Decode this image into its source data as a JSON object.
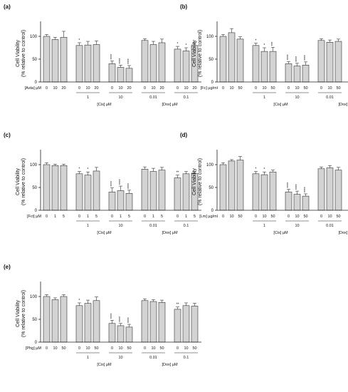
{
  "colors": {
    "bar_fill": "#d3d3d3",
    "bar_stroke": "#333333",
    "axis": "#222222"
  },
  "chart_data": [
    {
      "type": "bar",
      "panel_label": "(a)",
      "ylabel": [
        "Cell Viability",
        "(% relative to control)"
      ],
      "ylim": [
        0,
        125
      ],
      "yticks": [
        "0",
        "50",
        "100"
      ],
      "compound_label": "[Asta] µM",
      "groups": [
        {
          "doses": [
            "0",
            "10",
            "20"
          ],
          "values": [
            100,
            93,
            98
          ],
          "errors": [
            4,
            5,
            13
          ],
          "stars": [
            "",
            "",
            ""
          ],
          "treatment": ""
        },
        {
          "doses": [
            "0",
            "10",
            "20"
          ],
          "values": [
            80,
            81,
            82
          ],
          "errors": [
            6,
            8,
            8
          ],
          "stars": [
            "*",
            "",
            ""
          ],
          "treatment": "1"
        },
        {
          "doses": [
            "0",
            "10",
            "20"
          ],
          "values": [
            40,
            32,
            30
          ],
          "errors": [
            6,
            5,
            6
          ],
          "stars": [
            "****",
            "****",
            "****"
          ],
          "treatment": "10"
        },
        {
          "doses": [
            "0",
            "10",
            "20"
          ],
          "values": [
            91,
            82,
            86
          ],
          "errors": [
            4,
            7,
            8
          ],
          "stars": [
            "",
            "",
            ""
          ],
          "treatment": "0.01"
        },
        {
          "doses": [
            "0",
            "10",
            "20"
          ],
          "values": [
            72,
            68,
            80
          ],
          "errors": [
            6,
            7,
            6
          ],
          "stars": [
            "*",
            "*",
            ""
          ],
          "treatment": "0.1"
        }
      ],
      "treatment_labels": [
        "[Cis] µM",
        "[Dox] µM"
      ]
    },
    {
      "type": "bar",
      "panel_label": "(b)",
      "ylabel": [
        "Cell Viability",
        "(% relative to control)"
      ],
      "ylim": [
        0,
        125
      ],
      "yticks": [
        "0",
        "50",
        "100"
      ],
      "compound_label": "[Fc] µg/ml",
      "groups": [
        {
          "doses": [
            "0",
            "10",
            "50"
          ],
          "values": [
            100,
            108,
            94
          ],
          "errors": [
            4,
            9,
            5
          ],
          "stars": [
            "",
            "",
            ""
          ],
          "treatment": ""
        },
        {
          "doses": [
            "0",
            "10",
            "50"
          ],
          "values": [
            80,
            67,
            67
          ],
          "errors": [
            5,
            8,
            9
          ],
          "stars": [
            "*",
            "*",
            "***"
          ],
          "treatment": "1"
        },
        {
          "doses": [
            "0",
            "10",
            "50"
          ],
          "values": [
            40,
            35,
            37
          ],
          "errors": [
            5,
            6,
            7
          ],
          "stars": [
            "****",
            "****",
            "****"
          ],
          "treatment": "10"
        },
        {
          "doses": [
            "0",
            "10",
            "50"
          ],
          "values": [
            91,
            87,
            89
          ],
          "errors": [
            4,
            5,
            5
          ],
          "stars": [
            "",
            "",
            ""
          ],
          "treatment": "0.01"
        },
        {
          "doses": [
            "0",
            "10",
            "50"
          ],
          "values": [
            71,
            83,
            77
          ],
          "errors": [
            5,
            3,
            4
          ],
          "stars": [
            "**",
            "",
            ""
          ],
          "treatment": "0.1"
        }
      ],
      "treatment_labels": [
        "[Cis] µM",
        "[Dox] µM"
      ]
    },
    {
      "type": "bar",
      "panel_label": "(c)",
      "ylabel": [
        "Cell Viability",
        "(% relative to control)"
      ],
      "ylim": [
        0,
        125
      ],
      "yticks": [
        "0",
        "50",
        "100"
      ],
      "compound_label": "[Fct] µM",
      "groups": [
        {
          "doses": [
            "0",
            "1",
            "5"
          ],
          "values": [
            100,
            98,
            98
          ],
          "errors": [
            4,
            3,
            3
          ],
          "stars": [
            "",
            "",
            ""
          ],
          "treatment": ""
        },
        {
          "doses": [
            "0",
            "1",
            "5"
          ],
          "values": [
            80,
            77,
            86
          ],
          "errors": [
            5,
            7,
            8
          ],
          "stars": [
            "*",
            "*",
            ""
          ],
          "treatment": "1"
        },
        {
          "doses": [
            "0",
            "1",
            "5"
          ],
          "values": [
            40,
            43,
            37
          ],
          "errors": [
            9,
            10,
            7
          ],
          "stars": [
            "****",
            "****",
            "****"
          ],
          "treatment": "10"
        },
        {
          "doses": [
            "0",
            "1",
            "5"
          ],
          "values": [
            90,
            85,
            88
          ],
          "errors": [
            5,
            7,
            6
          ],
          "stars": [
            "",
            "",
            ""
          ],
          "treatment": "0.01"
        },
        {
          "doses": [
            "0",
            "1",
            "5"
          ],
          "values": [
            71,
            80,
            81
          ],
          "errors": [
            6,
            5,
            4
          ],
          "stars": [
            "**",
            "",
            ""
          ],
          "treatment": "0.1"
        }
      ],
      "treatment_labels": [
        "[Cis] µM",
        "[Dox] µM"
      ]
    },
    {
      "type": "bar",
      "panel_label": "(d)",
      "ylabel": [
        "Cell Viability",
        "(% relative to control)"
      ],
      "ylim": [
        0,
        125
      ],
      "yticks": [
        "0",
        "50",
        "100"
      ],
      "compound_label": "[Lm] µg/ml",
      "groups": [
        {
          "doses": [
            "0",
            "10",
            "50"
          ],
          "values": [
            100,
            108,
            110
          ],
          "errors": [
            4,
            3,
            8
          ],
          "stars": [
            "",
            "",
            ""
          ],
          "treatment": ""
        },
        {
          "doses": [
            "0",
            "10",
            "50"
          ],
          "values": [
            80,
            78,
            84
          ],
          "errors": [
            5,
            6,
            4
          ],
          "stars": [
            "*",
            "*",
            ""
          ],
          "treatment": "1"
        },
        {
          "doses": [
            "0",
            "10",
            "50"
          ],
          "values": [
            40,
            35,
            31
          ],
          "errors": [
            6,
            7,
            5
          ],
          "stars": [
            "****",
            "****",
            "****"
          ],
          "treatment": "10"
        },
        {
          "doses": [
            "0",
            "10",
            "50"
          ],
          "values": [
            91,
            93,
            88
          ],
          "errors": [
            4,
            5,
            6
          ],
          "stars": [
            "",
            "",
            ""
          ],
          "treatment": "0.01"
        },
        {
          "doses": [
            "0",
            "10",
            "50"
          ],
          "values": [
            72,
            76,
            75
          ],
          "errors": [
            6,
            6,
            5
          ],
          "stars": [
            "**",
            "",
            ""
          ],
          "treatment": "0.1"
        }
      ],
      "treatment_labels": [
        "[Cis] µM",
        "[Dox] µM"
      ]
    },
    {
      "type": "bar",
      "panel_label": "(e)",
      "ylabel": [
        "Cell Viability",
        "(% relative to control)"
      ],
      "ylim": [
        0,
        125
      ],
      "yticks": [
        "0",
        "50",
        "100"
      ],
      "compound_label": "[Phg] µM",
      "groups": [
        {
          "doses": [
            "0",
            "10",
            "50"
          ],
          "values": [
            100,
            93,
            100
          ],
          "errors": [
            4,
            4,
            4
          ],
          "stars": [
            "",
            "",
            ""
          ],
          "treatment": ""
        },
        {
          "doses": [
            "0",
            "10",
            "50"
          ],
          "values": [
            80,
            85,
            91
          ],
          "errors": [
            6,
            7,
            8
          ],
          "stars": [
            "*",
            "",
            ""
          ],
          "treatment": "1"
        },
        {
          "doses": [
            "0",
            "10",
            "50"
          ],
          "values": [
            41,
            36,
            33
          ],
          "errors": [
            7,
            5,
            6
          ],
          "stars": [
            "****",
            "****",
            "****"
          ],
          "treatment": "10"
        },
        {
          "doses": [
            "0",
            "10",
            "50"
          ],
          "values": [
            91,
            89,
            87
          ],
          "errors": [
            4,
            4,
            5
          ],
          "stars": [
            "",
            "",
            ""
          ],
          "treatment": "0.01"
        },
        {
          "doses": [
            "0",
            "10",
            "50"
          ],
          "values": [
            72,
            80,
            79
          ],
          "errors": [
            5,
            6,
            6
          ],
          "stars": [
            "**",
            "",
            ""
          ],
          "treatment": "0.1"
        }
      ],
      "treatment_labels": [
        "[Cis] µM",
        "[Dox] µM"
      ]
    }
  ]
}
